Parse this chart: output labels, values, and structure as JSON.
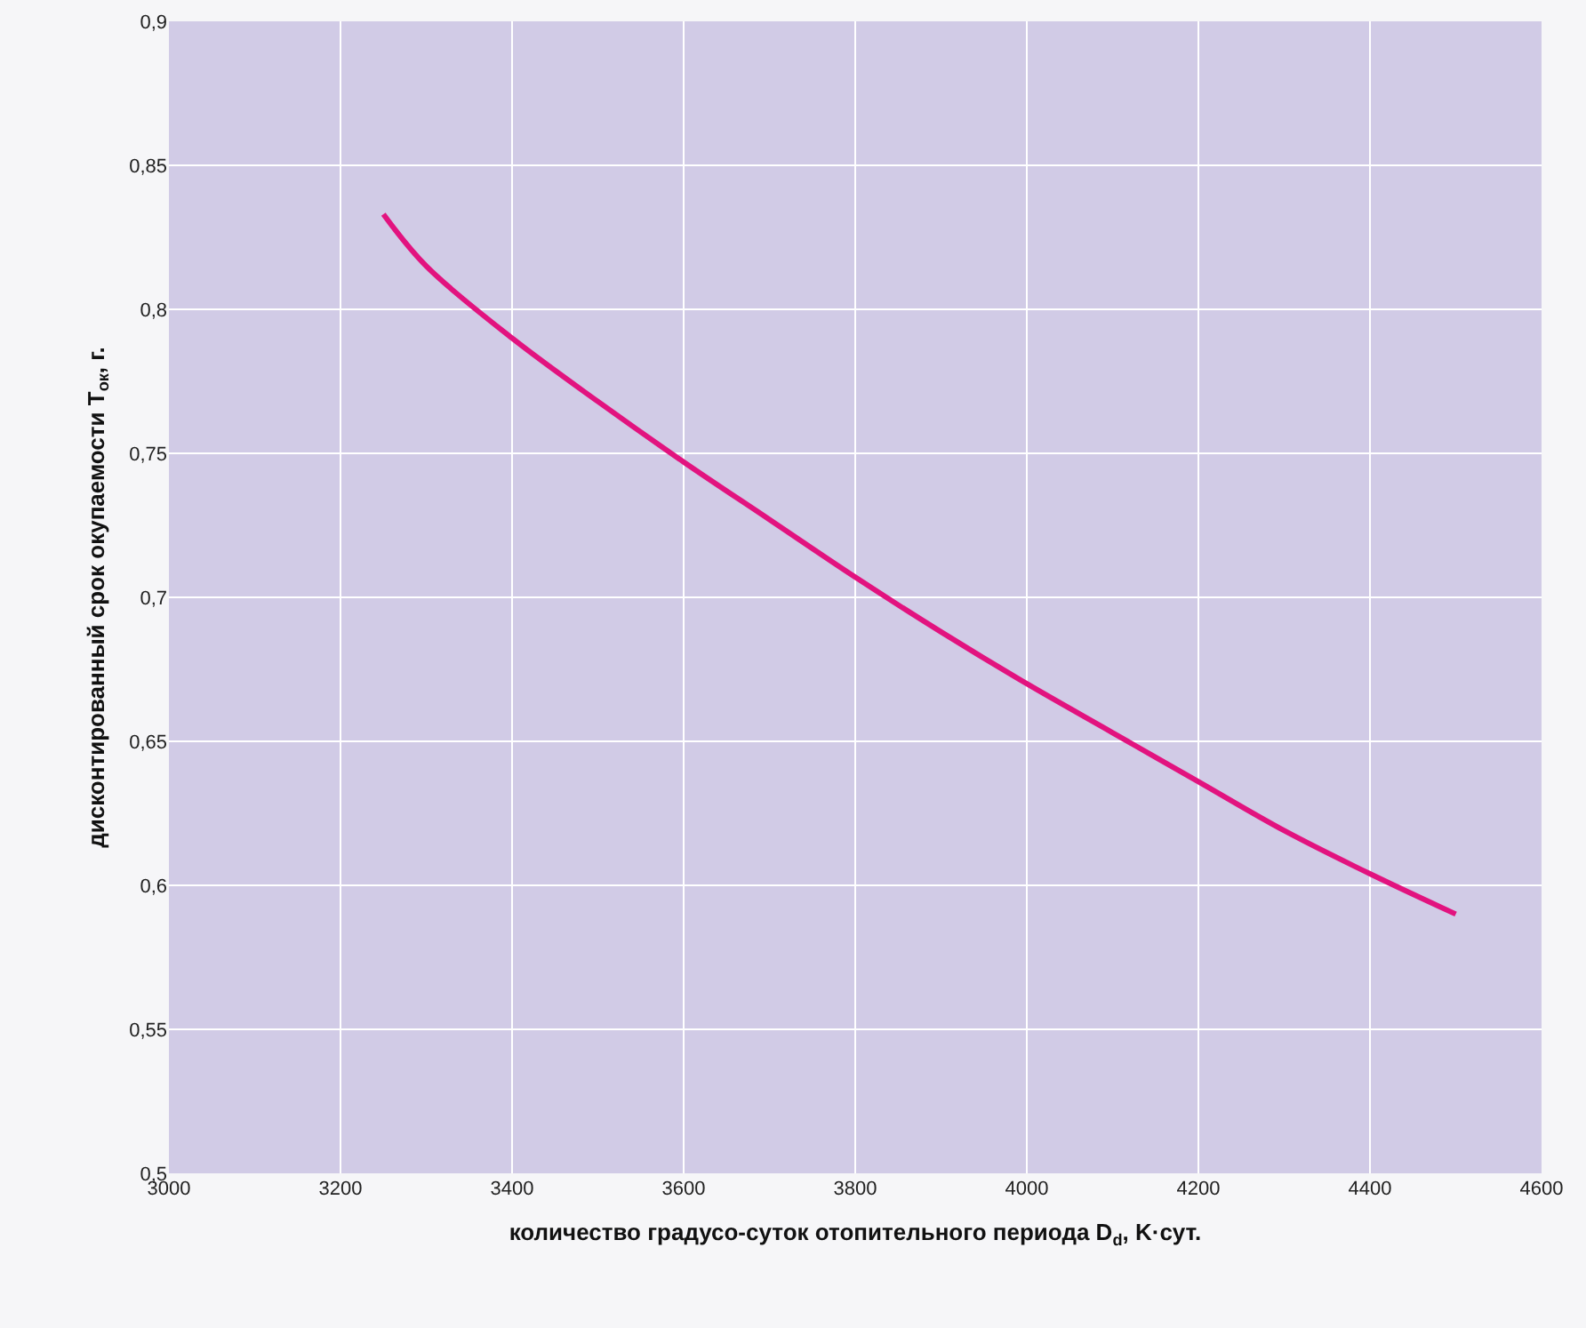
{
  "chart_data": {
    "type": "line",
    "xlabel": "количество градусо-суток отопительного периода D$_{d}$, K·сут.",
    "ylabel": "дисконтированный срок окупаемости T$_{ок}$, г.",
    "x": [
      3250,
      3300,
      3400,
      3500,
      3600,
      3700,
      3800,
      3900,
      4000,
      4100,
      4200,
      4300,
      4400,
      4500
    ],
    "series": [
      {
        "color": "#e2137f",
        "values": [
          0.833,
          0.815,
          0.79,
          0.768,
          0.747,
          0.727,
          0.707,
          0.688,
          0.67,
          0.653,
          0.636,
          0.619,
          0.604,
          0.59
        ]
      }
    ],
    "xlim": [
      3000,
      4600
    ],
    "xticks": [
      3000,
      3200,
      3400,
      3600,
      3800,
      4000,
      4200,
      4400,
      4600
    ],
    "ylim": [
      0.5,
      0.9
    ],
    "yticks": [
      {
        "value": 0.5,
        "label": "0,5"
      },
      {
        "value": 0.55,
        "label": "0,55"
      },
      {
        "value": 0.6,
        "label": "0,6"
      },
      {
        "value": 0.65,
        "label": "0,65"
      },
      {
        "value": 0.7,
        "label": "0,7"
      },
      {
        "value": 0.75,
        "label": "0,75"
      },
      {
        "value": 0.8,
        "label": "0,8"
      },
      {
        "value": 0.85,
        "label": "0,85"
      },
      {
        "value": 0.9,
        "label": "0,9"
      }
    ],
    "grid": true,
    "marker": "none",
    "line_style": "solid"
  }
}
